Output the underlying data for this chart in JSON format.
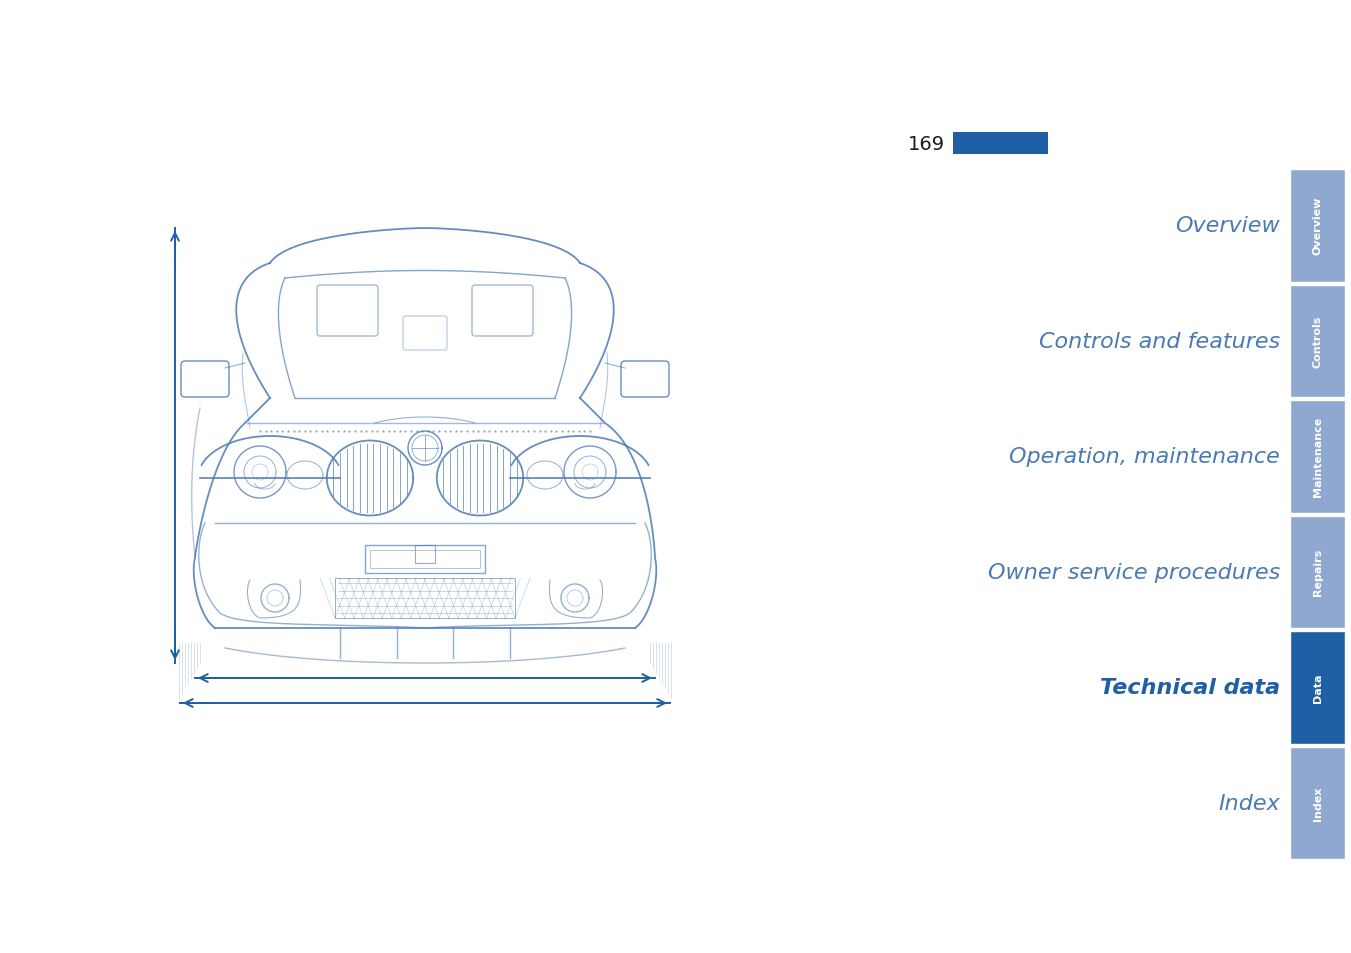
{
  "page_number": "169",
  "background_color": "#ffffff",
  "nav_items": [
    {
      "label": "Overview",
      "tab_label": "Overview",
      "active": false,
      "color": "#8fa8d0",
      "text_color": "#4a7ab5"
    },
    {
      "label": "Controls and features",
      "tab_label": "Controls",
      "active": false,
      "color": "#8fa8d0",
      "text_color": "#4a7ab5"
    },
    {
      "label": "Operation, maintenance",
      "tab_label": "Maintenance",
      "active": false,
      "color": "#8fa8d0",
      "text_color": "#4a7ab5"
    },
    {
      "label": "Owner service procedures",
      "tab_label": "Repairs",
      "active": false,
      "color": "#8fa8d0",
      "text_color": "#4a7ab5"
    },
    {
      "label": "Technical data",
      "tab_label": "Data",
      "active": true,
      "color": "#1f5fa6",
      "text_color": "#1f5fa6"
    },
    {
      "label": "Index",
      "tab_label": "Index",
      "active": false,
      "color": "#8fa8d0",
      "text_color": "#4a7ab5"
    }
  ],
  "page_num_bar_color": "#1f5fa6",
  "arrow_color": "#1f5fa6",
  "car_line_color": "#4a7ab5",
  "nav_font_size": 16,
  "tab_font_size": 8
}
